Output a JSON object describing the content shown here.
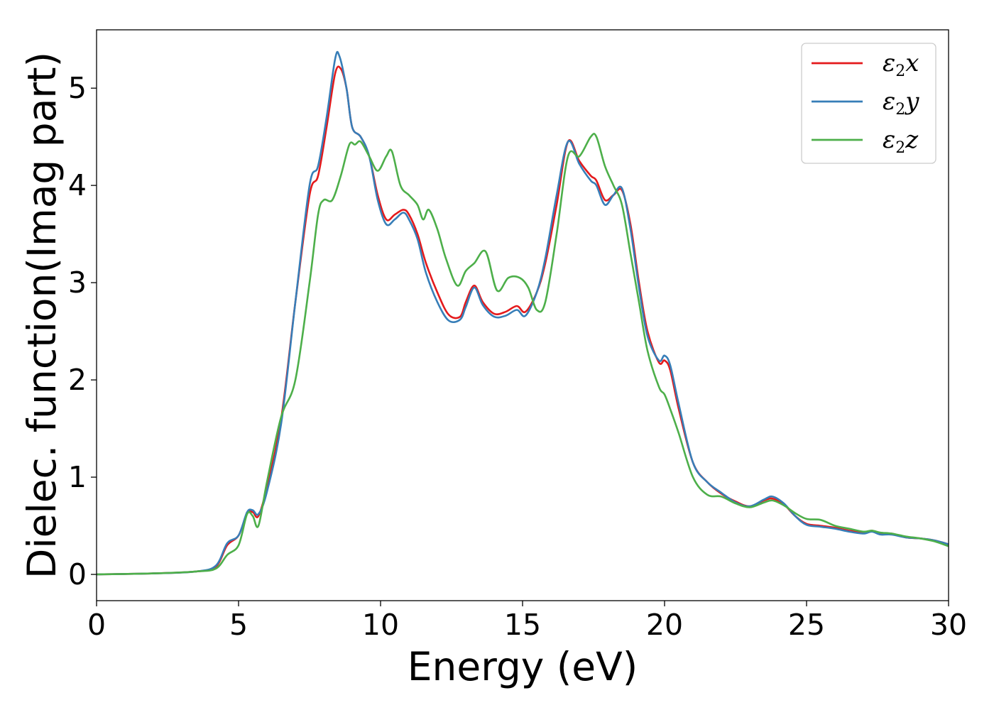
{
  "chart_data": {
    "type": "line",
    "xlabel": "Energy (eV)",
    "ylabel": "Dielec. function(Imag part)",
    "xlim": [
      0,
      30
    ],
    "ylim": [
      -0.27,
      5.6
    ],
    "xticks": [
      0,
      5,
      10,
      15,
      20,
      25,
      30
    ],
    "yticks": [
      0,
      1,
      2,
      3,
      4,
      5
    ],
    "grid": false,
    "legend_position": "top-right",
    "series": [
      {
        "name": "ε2x",
        "legend": {
          "symbol": "ε",
          "sub": "2",
          "axis": "x"
        },
        "color": "#e41a1c",
        "points": [
          [
            0,
            0
          ],
          [
            2,
            0.01
          ],
          [
            3.5,
            0.03
          ],
          [
            4.2,
            0.08
          ],
          [
            4.6,
            0.3
          ],
          [
            5,
            0.4
          ],
          [
            5.3,
            0.63
          ],
          [
            5.5,
            0.64
          ],
          [
            5.7,
            0.6
          ],
          [
            6,
            0.9
          ],
          [
            6.5,
            1.6
          ],
          [
            7,
            2.8
          ],
          [
            7.5,
            3.9
          ],
          [
            7.8,
            4.1
          ],
          [
            8.1,
            4.6
          ],
          [
            8.4,
            5.15
          ],
          [
            8.6,
            5.2
          ],
          [
            8.8,
            5.0
          ],
          [
            9.0,
            4.6
          ],
          [
            9.3,
            4.5
          ],
          [
            9.6,
            4.3
          ],
          [
            9.9,
            3.9
          ],
          [
            10.2,
            3.65
          ],
          [
            10.5,
            3.7
          ],
          [
            10.8,
            3.75
          ],
          [
            11.0,
            3.7
          ],
          [
            11.3,
            3.5
          ],
          [
            11.6,
            3.2
          ],
          [
            12.0,
            2.9
          ],
          [
            12.4,
            2.67
          ],
          [
            12.8,
            2.65
          ],
          [
            13.0,
            2.8
          ],
          [
            13.3,
            2.97
          ],
          [
            13.6,
            2.8
          ],
          [
            14.0,
            2.68
          ],
          [
            14.4,
            2.7
          ],
          [
            14.8,
            2.76
          ],
          [
            15.1,
            2.7
          ],
          [
            15.5,
            2.9
          ],
          [
            15.8,
            3.2
          ],
          [
            16.2,
            3.8
          ],
          [
            16.6,
            4.45
          ],
          [
            17.0,
            4.25
          ],
          [
            17.4,
            4.1
          ],
          [
            17.6,
            4.05
          ],
          [
            17.9,
            3.85
          ],
          [
            18.2,
            3.9
          ],
          [
            18.5,
            3.95
          ],
          [
            18.8,
            3.6
          ],
          [
            19.1,
            3.0
          ],
          [
            19.4,
            2.5
          ],
          [
            19.8,
            2.18
          ],
          [
            20.0,
            2.2
          ],
          [
            20.2,
            2.1
          ],
          [
            20.5,
            1.7
          ],
          [
            21.0,
            1.15
          ],
          [
            21.5,
            0.95
          ],
          [
            22.0,
            0.83
          ],
          [
            22.5,
            0.75
          ],
          [
            23.0,
            0.7
          ],
          [
            23.5,
            0.76
          ],
          [
            23.8,
            0.78
          ],
          [
            24.2,
            0.72
          ],
          [
            24.6,
            0.6
          ],
          [
            25.0,
            0.52
          ],
          [
            25.5,
            0.5
          ],
          [
            26.0,
            0.48
          ],
          [
            26.5,
            0.45
          ],
          [
            27.0,
            0.43
          ],
          [
            27.3,
            0.45
          ],
          [
            27.6,
            0.42
          ],
          [
            28.0,
            0.42
          ],
          [
            28.5,
            0.38
          ],
          [
            29.0,
            0.37
          ],
          [
            29.5,
            0.35
          ],
          [
            30.0,
            0.31
          ]
        ]
      },
      {
        "name": "ε2y",
        "legend": {
          "symbol": "ε",
          "sub": "2",
          "axis": "y"
        },
        "color": "#377eb8",
        "points": [
          [
            0,
            0
          ],
          [
            2,
            0.01
          ],
          [
            3.5,
            0.03
          ],
          [
            4.2,
            0.09
          ],
          [
            4.6,
            0.32
          ],
          [
            5,
            0.4
          ],
          [
            5.3,
            0.64
          ],
          [
            5.5,
            0.66
          ],
          [
            5.7,
            0.62
          ],
          [
            6,
            0.85
          ],
          [
            6.5,
            1.55
          ],
          [
            7,
            2.8
          ],
          [
            7.5,
            4.0
          ],
          [
            7.8,
            4.2
          ],
          [
            8.1,
            4.7
          ],
          [
            8.4,
            5.3
          ],
          [
            8.55,
            5.33
          ],
          [
            8.8,
            5.0
          ],
          [
            9.0,
            4.6
          ],
          [
            9.3,
            4.5
          ],
          [
            9.6,
            4.3
          ],
          [
            9.9,
            3.85
          ],
          [
            10.2,
            3.6
          ],
          [
            10.5,
            3.65
          ],
          [
            10.8,
            3.72
          ],
          [
            11.0,
            3.65
          ],
          [
            11.3,
            3.45
          ],
          [
            11.6,
            3.1
          ],
          [
            12.0,
            2.8
          ],
          [
            12.4,
            2.61
          ],
          [
            12.8,
            2.62
          ],
          [
            13.0,
            2.75
          ],
          [
            13.3,
            2.95
          ],
          [
            13.6,
            2.77
          ],
          [
            14.0,
            2.65
          ],
          [
            14.4,
            2.66
          ],
          [
            14.8,
            2.72
          ],
          [
            15.1,
            2.66
          ],
          [
            15.5,
            2.9
          ],
          [
            15.8,
            3.25
          ],
          [
            16.2,
            3.9
          ],
          [
            16.6,
            4.45
          ],
          [
            17.0,
            4.22
          ],
          [
            17.4,
            4.05
          ],
          [
            17.6,
            4.0
          ],
          [
            17.9,
            3.8
          ],
          [
            18.2,
            3.9
          ],
          [
            18.5,
            3.97
          ],
          [
            18.8,
            3.55
          ],
          [
            19.1,
            2.95
          ],
          [
            19.4,
            2.45
          ],
          [
            19.8,
            2.2
          ],
          [
            20.0,
            2.25
          ],
          [
            20.2,
            2.15
          ],
          [
            20.5,
            1.75
          ],
          [
            21.0,
            1.15
          ],
          [
            21.5,
            0.95
          ],
          [
            22.0,
            0.84
          ],
          [
            22.5,
            0.74
          ],
          [
            23.0,
            0.7
          ],
          [
            23.5,
            0.77
          ],
          [
            23.8,
            0.8
          ],
          [
            24.2,
            0.73
          ],
          [
            24.6,
            0.6
          ],
          [
            25.0,
            0.51
          ],
          [
            25.5,
            0.49
          ],
          [
            26.0,
            0.47
          ],
          [
            26.5,
            0.44
          ],
          [
            27.0,
            0.42
          ],
          [
            27.3,
            0.44
          ],
          [
            27.6,
            0.41
          ],
          [
            28.0,
            0.41
          ],
          [
            28.5,
            0.38
          ],
          [
            29.0,
            0.37
          ],
          [
            29.5,
            0.35
          ],
          [
            30.0,
            0.31
          ]
        ]
      },
      {
        "name": "ε2z",
        "legend": {
          "symbol": "ε",
          "sub": "2",
          "axis": "z"
        },
        "color": "#4daf4a",
        "points": [
          [
            0,
            0
          ],
          [
            2,
            0.01
          ],
          [
            3.5,
            0.03
          ],
          [
            4.2,
            0.06
          ],
          [
            4.6,
            0.2
          ],
          [
            5,
            0.3
          ],
          [
            5.3,
            0.62
          ],
          [
            5.5,
            0.6
          ],
          [
            5.7,
            0.5
          ],
          [
            6,
            0.95
          ],
          [
            6.5,
            1.62
          ],
          [
            7,
            2.0
          ],
          [
            7.5,
            3.0
          ],
          [
            7.8,
            3.7
          ],
          [
            8.0,
            3.85
          ],
          [
            8.3,
            3.85
          ],
          [
            8.6,
            4.1
          ],
          [
            8.9,
            4.42
          ],
          [
            9.1,
            4.42
          ],
          [
            9.3,
            4.45
          ],
          [
            9.6,
            4.3
          ],
          [
            9.9,
            4.15
          ],
          [
            10.2,
            4.3
          ],
          [
            10.4,
            4.35
          ],
          [
            10.7,
            4.0
          ],
          [
            11.0,
            3.9
          ],
          [
            11.3,
            3.8
          ],
          [
            11.5,
            3.65
          ],
          [
            11.7,
            3.75
          ],
          [
            12.0,
            3.55
          ],
          [
            12.3,
            3.25
          ],
          [
            12.7,
            2.97
          ],
          [
            13.0,
            3.12
          ],
          [
            13.3,
            3.2
          ],
          [
            13.7,
            3.32
          ],
          [
            14.1,
            2.92
          ],
          [
            14.5,
            3.05
          ],
          [
            14.9,
            3.05
          ],
          [
            15.2,
            2.95
          ],
          [
            15.5,
            2.72
          ],
          [
            15.8,
            2.8
          ],
          [
            16.2,
            3.5
          ],
          [
            16.6,
            4.3
          ],
          [
            17.0,
            4.3
          ],
          [
            17.4,
            4.5
          ],
          [
            17.6,
            4.5
          ],
          [
            17.9,
            4.2
          ],
          [
            18.2,
            4.0
          ],
          [
            18.5,
            3.8
          ],
          [
            18.8,
            3.3
          ],
          [
            19.1,
            2.8
          ],
          [
            19.4,
            2.3
          ],
          [
            19.8,
            1.93
          ],
          [
            20.0,
            1.85
          ],
          [
            20.2,
            1.7
          ],
          [
            20.5,
            1.45
          ],
          [
            21.0,
            1.0
          ],
          [
            21.5,
            0.82
          ],
          [
            22.0,
            0.8
          ],
          [
            22.5,
            0.73
          ],
          [
            23.0,
            0.69
          ],
          [
            23.5,
            0.74
          ],
          [
            23.8,
            0.76
          ],
          [
            24.2,
            0.71
          ],
          [
            24.6,
            0.63
          ],
          [
            25.0,
            0.57
          ],
          [
            25.5,
            0.56
          ],
          [
            26.0,
            0.5
          ],
          [
            26.5,
            0.47
          ],
          [
            27.0,
            0.44
          ],
          [
            27.3,
            0.45
          ],
          [
            27.6,
            0.43
          ],
          [
            28.0,
            0.42
          ],
          [
            28.5,
            0.39
          ],
          [
            29.0,
            0.37
          ],
          [
            29.5,
            0.34
          ],
          [
            30.0,
            0.29
          ]
        ]
      }
    ]
  }
}
